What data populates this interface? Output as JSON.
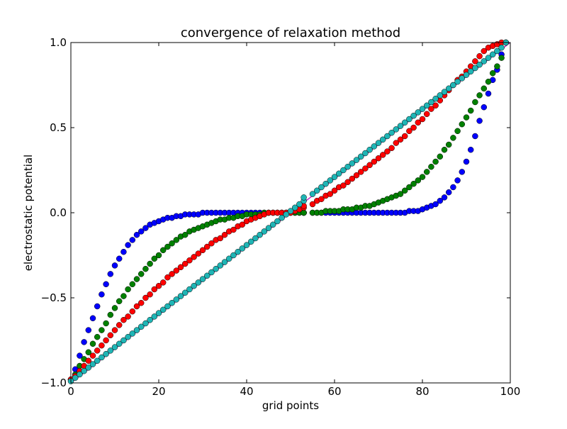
{
  "chart_data": {
    "type": "scatter",
    "title": "convergence of relaxation method",
    "xlabel": "grid points",
    "ylabel": "electrostatic potential",
    "xlim": [
      0,
      100
    ],
    "ylim": [
      -1.0,
      1.0
    ],
    "x_ticks": [
      0,
      20,
      40,
      60,
      80,
      100
    ],
    "x_tick_labels": [
      "0",
      "20",
      "40",
      "60",
      "80",
      "100"
    ],
    "y_ticks": [
      -1.0,
      -0.5,
      0.0,
      0.5,
      1.0
    ],
    "y_tick_labels": [
      "−1.0",
      "−0.5",
      "0.0",
      "0.5",
      "1.0"
    ],
    "grid": false,
    "legend": "none",
    "x": [
      0,
      1,
      2,
      3,
      4,
      5,
      6,
      7,
      8,
      9,
      10,
      11,
      12,
      13,
      14,
      15,
      16,
      17,
      18,
      19,
      20,
      21,
      22,
      23,
      24,
      25,
      26,
      27,
      28,
      29,
      30,
      31,
      32,
      33,
      34,
      35,
      36,
      37,
      38,
      39,
      40,
      41,
      42,
      43,
      44,
      45,
      46,
      47,
      48,
      49,
      50,
      51,
      52,
      53,
      53,
      55,
      56,
      57,
      58,
      59,
      60,
      61,
      62,
      63,
      64,
      65,
      66,
      67,
      68,
      69,
      70,
      71,
      72,
      73,
      74,
      75,
      76,
      77,
      78,
      79,
      80,
      81,
      82,
      83,
      84,
      85,
      86,
      87,
      88,
      89,
      90,
      91,
      92,
      93,
      94,
      95,
      96,
      97,
      98,
      99
    ],
    "series": [
      {
        "color": "#0000ff",
        "marker": "circle",
        "values": [
          -0.98,
          -0.92,
          -0.84,
          -0.76,
          -0.69,
          -0.62,
          -0.55,
          -0.48,
          -0.42,
          -0.36,
          -0.31,
          -0.27,
          -0.23,
          -0.19,
          -0.16,
          -0.13,
          -0.11,
          -0.09,
          -0.07,
          -0.06,
          -0.05,
          -0.04,
          -0.03,
          -0.03,
          -0.02,
          -0.02,
          -0.01,
          -0.01,
          -0.01,
          -0.01,
          0.0,
          0.0,
          0.0,
          0.0,
          0.0,
          0.0,
          0.0,
          0.0,
          0.0,
          0.0,
          0.0,
          0.0,
          0.0,
          0.0,
          0.0,
          0.0,
          0.0,
          0.0,
          0.0,
          0.0,
          0.0,
          0.0,
          0.0,
          0.0,
          0.0,
          0.0,
          0.0,
          0.0,
          0.0,
          0.0,
          0.0,
          0.0,
          0.0,
          0.0,
          0.0,
          0.0,
          0.0,
          0.0,
          0.0,
          0.0,
          0.0,
          0.0,
          0.0,
          0.0,
          0.0,
          0.0,
          0.0,
          0.01,
          0.01,
          0.01,
          0.02,
          0.03,
          0.04,
          0.05,
          0.07,
          0.09,
          0.12,
          0.15,
          0.19,
          0.24,
          0.3,
          0.37,
          0.45,
          0.54,
          0.62,
          0.7,
          0.78,
          0.84,
          0.93,
          1.0
        ]
      },
      {
        "color": "#008000",
        "marker": "circle",
        "values": [
          -0.98,
          -0.95,
          -0.9,
          -0.86,
          -0.82,
          -0.77,
          -0.73,
          -0.69,
          -0.65,
          -0.6,
          -0.56,
          -0.52,
          -0.49,
          -0.45,
          -0.42,
          -0.39,
          -0.36,
          -0.33,
          -0.3,
          -0.27,
          -0.25,
          -0.22,
          -0.2,
          -0.18,
          -0.16,
          -0.14,
          -0.13,
          -0.11,
          -0.1,
          -0.09,
          -0.08,
          -0.07,
          -0.06,
          -0.05,
          -0.04,
          -0.04,
          -0.03,
          -0.03,
          -0.02,
          -0.02,
          -0.01,
          -0.01,
          -0.01,
          -0.01,
          0.0,
          0.0,
          0.0,
          0.0,
          0.0,
          0.0,
          0.0,
          0.0,
          0.0,
          0.0,
          0.0,
          0.0,
          0.0,
          0.0,
          0.01,
          0.01,
          0.01,
          0.01,
          0.02,
          0.02,
          0.02,
          0.03,
          0.03,
          0.04,
          0.04,
          0.05,
          0.06,
          0.07,
          0.08,
          0.09,
          0.1,
          0.11,
          0.13,
          0.15,
          0.17,
          0.19,
          0.21,
          0.24,
          0.27,
          0.3,
          0.33,
          0.37,
          0.4,
          0.44,
          0.48,
          0.52,
          0.56,
          0.6,
          0.65,
          0.69,
          0.73,
          0.77,
          0.82,
          0.86,
          0.91,
          1.0
        ]
      },
      {
        "color": "#ff0000",
        "marker": "circle",
        "values": [
          -0.98,
          -0.96,
          -0.93,
          -0.9,
          -0.87,
          -0.84,
          -0.81,
          -0.78,
          -0.75,
          -0.72,
          -0.69,
          -0.66,
          -0.63,
          -0.61,
          -0.58,
          -0.55,
          -0.53,
          -0.5,
          -0.48,
          -0.45,
          -0.43,
          -0.41,
          -0.38,
          -0.36,
          -0.34,
          -0.32,
          -0.3,
          -0.28,
          -0.26,
          -0.24,
          -0.22,
          -0.2,
          -0.18,
          -0.16,
          -0.15,
          -0.13,
          -0.11,
          -0.1,
          -0.08,
          -0.07,
          -0.05,
          -0.04,
          -0.03,
          -0.02,
          -0.01,
          0.0,
          0.0,
          0.0,
          0.0,
          0.0,
          0.0,
          0.01,
          0.02,
          0.03,
          0.04,
          0.05,
          0.07,
          0.08,
          0.1,
          0.11,
          0.13,
          0.15,
          0.16,
          0.18,
          0.2,
          0.22,
          0.24,
          0.26,
          0.28,
          0.3,
          0.32,
          0.34,
          0.36,
          0.38,
          0.41,
          0.43,
          0.45,
          0.48,
          0.5,
          0.53,
          0.55,
          0.58,
          0.61,
          0.63,
          0.66,
          0.69,
          0.72,
          0.75,
          0.78,
          0.8,
          0.83,
          0.86,
          0.89,
          0.92,
          0.95,
          0.97,
          0.98,
          0.99,
          1.0,
          1.0
        ]
      },
      {
        "color": "#1fb5b5",
        "marker": "circle",
        "values": [
          -0.99,
          -0.97,
          -0.95,
          -0.93,
          -0.91,
          -0.89,
          -0.87,
          -0.85,
          -0.83,
          -0.81,
          -0.79,
          -0.77,
          -0.75,
          -0.73,
          -0.71,
          -0.69,
          -0.67,
          -0.65,
          -0.63,
          -0.61,
          -0.59,
          -0.57,
          -0.55,
          -0.53,
          -0.51,
          -0.49,
          -0.47,
          -0.45,
          -0.43,
          -0.41,
          -0.39,
          -0.37,
          -0.35,
          -0.33,
          -0.31,
          -0.29,
          -0.27,
          -0.25,
          -0.23,
          -0.21,
          -0.19,
          -0.17,
          -0.15,
          -0.13,
          -0.11,
          -0.09,
          -0.07,
          -0.05,
          -0.03,
          -0.01,
          0.01,
          0.03,
          0.05,
          0.07,
          0.09,
          0.11,
          0.13,
          0.15,
          0.17,
          0.19,
          0.21,
          0.23,
          0.25,
          0.27,
          0.29,
          0.31,
          0.33,
          0.35,
          0.37,
          0.39,
          0.41,
          0.43,
          0.45,
          0.47,
          0.49,
          0.51,
          0.53,
          0.55,
          0.57,
          0.59,
          0.61,
          0.63,
          0.65,
          0.67,
          0.69,
          0.71,
          0.73,
          0.75,
          0.77,
          0.79,
          0.81,
          0.83,
          0.85,
          0.87,
          0.89,
          0.91,
          0.93,
          0.95,
          0.97,
          1.0
        ]
      }
    ],
    "reference_line": {
      "color": "#c000c0",
      "x": [
        0,
        100
      ],
      "values": [
        -1.0,
        1.0
      ]
    }
  }
}
